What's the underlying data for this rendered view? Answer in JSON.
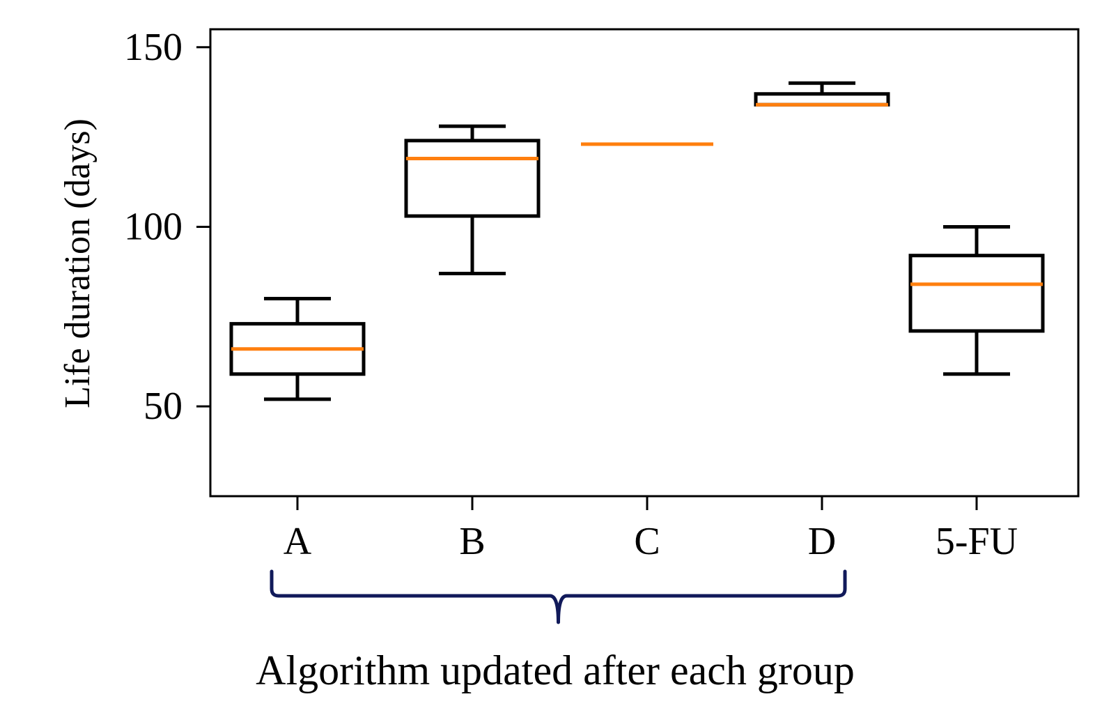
{
  "chart_data": {
    "type": "box",
    "title": "",
    "xlabel": "",
    "ylabel": "Life duration (days)",
    "ylim": [
      25,
      155
    ],
    "yticks": [
      50,
      100,
      150
    ],
    "categories": [
      "A",
      "B",
      "C",
      "D",
      "5-FU"
    ],
    "boxes": [
      {
        "category": "A",
        "whisker_low": 52,
        "q1": 59,
        "median": 66,
        "q3": 73,
        "whisker_high": 80
      },
      {
        "category": "B",
        "whisker_low": 87,
        "q1": 103,
        "median": 119,
        "q3": 124,
        "whisker_high": 128
      },
      {
        "category": "C",
        "whisker_low": 123,
        "q1": 123,
        "median": 123,
        "q3": 123,
        "whisker_high": 123
      },
      {
        "category": "D",
        "whisker_low": 134,
        "q1": 134,
        "median": 134,
        "q3": 137,
        "whisker_high": 140
      },
      {
        "category": "5-FU",
        "whisker_low": 59,
        "q1": 71,
        "median": 84,
        "q3": 92,
        "whisker_high": 100
      }
    ],
    "grid": false,
    "colors": {
      "box": "#000000",
      "median": "#ff7f0e",
      "brace": "#111a5a"
    },
    "annotation": {
      "text": "Algorithm updated after each group",
      "spans": [
        "A",
        "D"
      ]
    }
  }
}
